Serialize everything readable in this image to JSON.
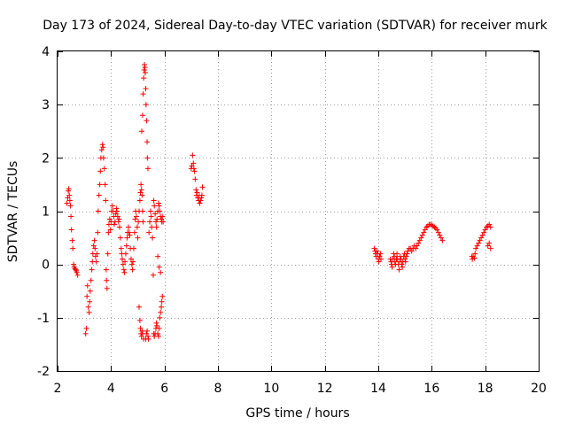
{
  "chart_data": {
    "type": "scatter",
    "title": "Day 173 of 2024, Sidereal Day-to-day VTEC variation (SDTVAR) for receiver murk",
    "xlabel": "GPS time / hours",
    "ylabel": "SDTVAR / TECUs",
    "xlim": [
      2,
      20
    ],
    "ylim": [
      -2,
      4
    ],
    "xticks": [
      2,
      4,
      6,
      8,
      10,
      12,
      14,
      16,
      18,
      20
    ],
    "yticks": [
      -2,
      -1,
      0,
      1,
      2,
      3,
      4
    ],
    "grid": true,
    "marker": "+",
    "color": "#ff0000",
    "series": [
      {
        "name": "SDTVAR",
        "points": [
          [
            2.35,
            1.15
          ],
          [
            2.38,
            1.25
          ],
          [
            2.4,
            1.38
          ],
          [
            2.42,
            1.42
          ],
          [
            2.44,
            1.3
          ],
          [
            2.46,
            1.2
          ],
          [
            2.48,
            1.1
          ],
          [
            2.5,
            0.9
          ],
          [
            2.52,
            0.65
          ],
          [
            2.55,
            0.45
          ],
          [
            2.57,
            0.3
          ],
          [
            2.6,
            0.0
          ],
          [
            2.62,
            -0.05
          ],
          [
            2.65,
            -0.08
          ],
          [
            2.68,
            -0.1
          ],
          [
            2.7,
            -0.12
          ],
          [
            2.72,
            -0.15
          ],
          [
            2.75,
            -0.2
          ],
          [
            3.05,
            -1.3
          ],
          [
            3.08,
            -1.2
          ],
          [
            3.1,
            -0.6
          ],
          [
            3.12,
            -0.4
          ],
          [
            3.15,
            -0.8
          ],
          [
            3.18,
            -0.9
          ],
          [
            3.2,
            -0.7
          ],
          [
            3.22,
            -0.5
          ],
          [
            3.25,
            -0.3
          ],
          [
            3.28,
            -0.1
          ],
          [
            3.3,
            0.05
          ],
          [
            3.32,
            0.2
          ],
          [
            3.35,
            0.35
          ],
          [
            3.38,
            0.45
          ],
          [
            3.4,
            0.3
          ],
          [
            3.42,
            0.15
          ],
          [
            3.45,
            0.05
          ],
          [
            3.48,
            0.2
          ],
          [
            3.5,
            0.6
          ],
          [
            3.52,
            1.0
          ],
          [
            3.55,
            1.3
          ],
          [
            3.58,
            1.5
          ],
          [
            3.6,
            1.75
          ],
          [
            3.62,
            2.0
          ],
          [
            3.65,
            2.15
          ],
          [
            3.68,
            2.25
          ],
          [
            3.7,
            2.2
          ],
          [
            3.72,
            2.0
          ],
          [
            3.75,
            1.8
          ],
          [
            3.78,
            1.5
          ],
          [
            3.8,
            1.2
          ],
          [
            3.82,
            -0.1
          ],
          [
            3.83,
            -0.3
          ],
          [
            3.85,
            -0.45
          ],
          [
            3.88,
            0.2
          ],
          [
            3.9,
            0.6
          ],
          [
            3.92,
            0.75
          ],
          [
            3.95,
            0.85
          ],
          [
            3.98,
            0.65
          ],
          [
            4.0,
            0.8
          ],
          [
            4.02,
            1.0
          ],
          [
            4.05,
            1.1
          ],
          [
            4.08,
            1.0
          ],
          [
            4.1,
            0.9
          ],
          [
            4.12,
            0.75
          ],
          [
            4.15,
            0.8
          ],
          [
            4.18,
            0.95
          ],
          [
            4.2,
            1.05
          ],
          [
            4.22,
            1.0
          ],
          [
            4.25,
            0.9
          ],
          [
            4.28,
            0.8
          ],
          [
            4.3,
            0.85
          ],
          [
            4.32,
            0.7
          ],
          [
            4.35,
            0.5
          ],
          [
            4.38,
            0.3
          ],
          [
            4.4,
            0.2
          ],
          [
            4.42,
            0.1
          ],
          [
            4.45,
            0.0
          ],
          [
            4.48,
            -0.1
          ],
          [
            4.5,
            -0.15
          ],
          [
            4.52,
            0.05
          ],
          [
            4.55,
            0.2
          ],
          [
            4.58,
            0.35
          ],
          [
            4.6,
            0.5
          ],
          [
            4.62,
            0.6
          ],
          [
            4.65,
            0.7
          ],
          [
            4.68,
            0.6
          ],
          [
            4.7,
            0.55
          ],
          [
            4.72,
            0.3
          ],
          [
            4.75,
            0.1
          ],
          [
            4.78,
            0.0
          ],
          [
            4.8,
            -0.1
          ],
          [
            4.82,
            0.05
          ],
          [
            4.85,
            0.3
          ],
          [
            4.88,
            0.6
          ],
          [
            4.9,
            0.85
          ],
          [
            4.92,
            1.0
          ],
          [
            4.95,
            0.9
          ],
          [
            4.98,
            0.7
          ],
          [
            5.0,
            0.5
          ],
          [
            5.02,
            0.8
          ],
          [
            5.05,
            1.0
          ],
          [
            5.08,
            1.2
          ],
          [
            5.1,
            1.35
          ],
          [
            5.12,
            1.5
          ],
          [
            5.14,
            1.4
          ],
          [
            5.16,
            1.3
          ],
          [
            5.18,
            1.0
          ],
          [
            5.2,
            0.8
          ],
          [
            5.05,
            -0.8
          ],
          [
            5.08,
            -1.05
          ],
          [
            5.1,
            -1.2
          ],
          [
            5.12,
            -1.3
          ],
          [
            5.14,
            -1.35
          ],
          [
            5.16,
            -1.25
          ],
          [
            5.18,
            -1.3
          ],
          [
            5.22,
            -1.4
          ],
          [
            5.15,
            2.5
          ],
          [
            5.18,
            2.8
          ],
          [
            5.2,
            3.2
          ],
          [
            5.22,
            3.5
          ],
          [
            5.24,
            3.65
          ],
          [
            5.25,
            3.75
          ],
          [
            5.27,
            3.7
          ],
          [
            5.28,
            3.6
          ],
          [
            5.3,
            3.3
          ],
          [
            5.31,
            3.0
          ],
          [
            5.33,
            2.7
          ],
          [
            5.35,
            2.3
          ],
          [
            5.36,
            2.0
          ],
          [
            5.38,
            1.8
          ],
          [
            5.3,
            -1.4
          ],
          [
            5.32,
            -1.3
          ],
          [
            5.35,
            -1.25
          ],
          [
            5.38,
            -1.35
          ],
          [
            5.4,
            -1.4
          ],
          [
            5.42,
            0.6
          ],
          [
            5.45,
            0.8
          ],
          [
            5.48,
            1.0
          ],
          [
            5.5,
            0.9
          ],
          [
            5.52,
            0.7
          ],
          [
            5.55,
            0.5
          ],
          [
            5.58,
            -0.2
          ],
          [
            5.6,
            -1.3
          ],
          [
            5.62,
            -1.35
          ],
          [
            5.65,
            -1.3
          ],
          [
            5.68,
            -1.2
          ],
          [
            5.7,
            -1.1
          ],
          [
            5.72,
            -1.15
          ],
          [
            5.75,
            -1.3
          ],
          [
            5.78,
            -1.35
          ],
          [
            5.8,
            -1.2
          ],
          [
            5.82,
            -1.0
          ],
          [
            5.85,
            -0.9
          ],
          [
            5.88,
            -0.8
          ],
          [
            5.9,
            -0.7
          ],
          [
            5.92,
            -0.6
          ],
          [
            5.6,
            1.2
          ],
          [
            5.62,
            1.1
          ],
          [
            5.65,
            0.95
          ],
          [
            5.68,
            0.8
          ],
          [
            5.7,
            0.7
          ],
          [
            5.72,
            0.85
          ],
          [
            5.75,
            1.0
          ],
          [
            5.78,
            1.15
          ],
          [
            5.8,
            1.1
          ],
          [
            5.82,
            1.0
          ],
          [
            5.85,
            0.9
          ],
          [
            5.88,
            0.85
          ],
          [
            5.9,
            0.8
          ],
          [
            5.92,
            0.9
          ],
          [
            5.95,
            0.8
          ],
          [
            5.75,
            0.15
          ],
          [
            5.8,
            -0.05
          ],
          [
            5.85,
            -0.15
          ],
          [
            7.0,
            1.8
          ],
          [
            7.02,
            1.85
          ],
          [
            7.05,
            2.05
          ],
          [
            7.08,
            1.9
          ],
          [
            7.1,
            1.8
          ],
          [
            7.12,
            1.75
          ],
          [
            7.15,
            1.6
          ],
          [
            7.18,
            1.4
          ],
          [
            7.2,
            1.3
          ],
          [
            7.22,
            1.35
          ],
          [
            7.25,
            1.25
          ],
          [
            7.28,
            1.2
          ],
          [
            7.3,
            1.3
          ],
          [
            7.32,
            1.15
          ],
          [
            7.35,
            1.2
          ],
          [
            7.38,
            1.25
          ],
          [
            7.4,
            1.3
          ],
          [
            7.42,
            1.45
          ],
          [
            13.85,
            0.3
          ],
          [
            13.88,
            0.25
          ],
          [
            13.9,
            0.2
          ],
          [
            13.92,
            0.15
          ],
          [
            13.95,
            0.25
          ],
          [
            13.98,
            0.2
          ],
          [
            14.0,
            0.1
          ],
          [
            14.02,
            0.05
          ],
          [
            14.05,
            0.15
          ],
          [
            14.08,
            0.2
          ],
          [
            14.1,
            0.1
          ],
          [
            14.45,
            0.1
          ],
          [
            14.48,
            0.05
          ],
          [
            14.5,
            0.0
          ],
          [
            14.52,
            -0.05
          ],
          [
            14.55,
            0.1
          ],
          [
            14.58,
            0.2
          ],
          [
            14.6,
            0.15
          ],
          [
            14.62,
            0.05
          ],
          [
            14.65,
            0.0
          ],
          [
            14.68,
            0.1
          ],
          [
            14.7,
            0.2
          ],
          [
            14.72,
            0.1
          ],
          [
            14.75,
            0.0
          ],
          [
            14.78,
            -0.1
          ],
          [
            14.8,
            0.05
          ],
          [
            14.82,
            0.15
          ],
          [
            14.85,
            0.1
          ],
          [
            14.88,
            0.0
          ],
          [
            14.9,
            -0.05
          ],
          [
            14.92,
            0.05
          ],
          [
            14.95,
            0.15
          ],
          [
            14.98,
            0.2
          ],
          [
            15.0,
            0.1
          ],
          [
            15.02,
            0.05
          ],
          [
            15.05,
            0.15
          ],
          [
            15.08,
            0.2
          ],
          [
            15.1,
            0.25
          ],
          [
            15.15,
            0.3
          ],
          [
            15.2,
            0.3
          ],
          [
            15.25,
            0.25
          ],
          [
            15.3,
            0.3
          ],
          [
            15.35,
            0.35
          ],
          [
            15.4,
            0.3
          ],
          [
            15.45,
            0.35
          ],
          [
            15.5,
            0.4
          ],
          [
            15.55,
            0.45
          ],
          [
            15.6,
            0.5
          ],
          [
            15.65,
            0.55
          ],
          [
            15.7,
            0.6
          ],
          [
            15.75,
            0.65
          ],
          [
            15.8,
            0.7
          ],
          [
            15.85,
            0.72
          ],
          [
            15.9,
            0.75
          ],
          [
            15.95,
            0.75
          ],
          [
            16.0,
            0.74
          ],
          [
            16.05,
            0.72
          ],
          [
            16.1,
            0.7
          ],
          [
            16.15,
            0.68
          ],
          [
            16.2,
            0.65
          ],
          [
            16.25,
            0.6
          ],
          [
            16.3,
            0.55
          ],
          [
            16.35,
            0.5
          ],
          [
            16.4,
            0.45
          ],
          [
            17.5,
            0.15
          ],
          [
            17.52,
            0.1
          ],
          [
            17.55,
            0.15
          ],
          [
            17.6,
            0.12
          ],
          [
            17.62,
            0.2
          ],
          [
            17.65,
            0.3
          ],
          [
            17.7,
            0.35
          ],
          [
            17.75,
            0.4
          ],
          [
            17.8,
            0.45
          ],
          [
            17.85,
            0.5
          ],
          [
            17.9,
            0.55
          ],
          [
            17.95,
            0.6
          ],
          [
            18.0,
            0.65
          ],
          [
            18.05,
            0.7
          ],
          [
            18.1,
            0.72
          ],
          [
            18.15,
            0.75
          ],
          [
            18.2,
            0.7
          ],
          [
            18.1,
            0.35
          ],
          [
            18.15,
            0.4
          ],
          [
            18.2,
            0.3
          ]
        ]
      }
    ]
  }
}
